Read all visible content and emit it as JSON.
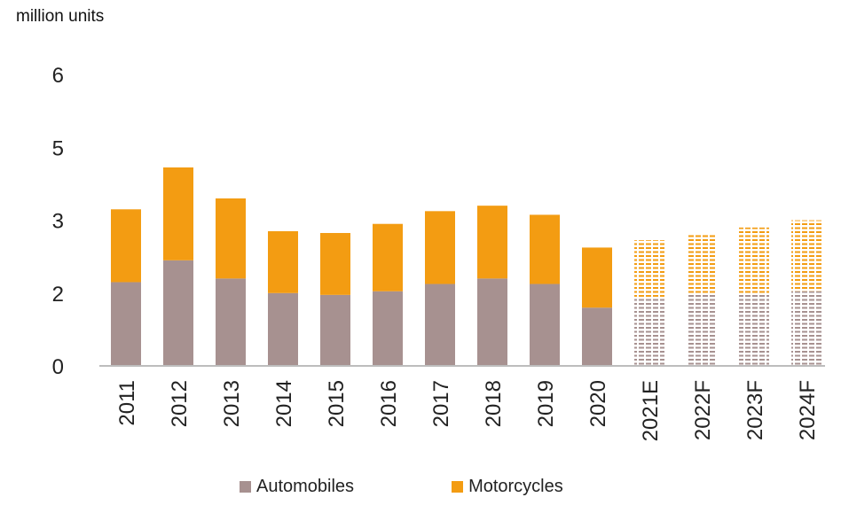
{
  "chart_data": {
    "type": "bar",
    "stacked": true,
    "ylabel": "million units",
    "yticks": [
      "0",
      "2",
      "3",
      "5",
      "6"
    ],
    "categories": [
      "2011",
      "2012",
      "2013",
      "2014",
      "2015",
      "2016",
      "2017",
      "2018",
      "2019",
      "2020",
      "2021E",
      "2022F",
      "2023F",
      "2024F"
    ],
    "series": [
      {
        "name": "Automobiles",
        "color": "#a79190",
        "values": [
          2.3,
          2.9,
          2.4,
          2.0,
          1.95,
          2.05,
          2.25,
          2.4,
          2.25,
          1.6,
          1.9,
          1.95,
          2.0,
          2.05
        ]
      },
      {
        "name": "Motorcycles",
        "color": "#f39c12",
        "values": [
          2.0,
          2.55,
          2.2,
          1.7,
          1.7,
          1.85,
          2.0,
          2.0,
          1.9,
          1.65,
          1.55,
          1.65,
          1.8,
          1.95
        ]
      }
    ],
    "projected_categories": [
      "2021E",
      "2022F",
      "2023F",
      "2024F"
    ],
    "projected_style": "dashed",
    "legend_position": "bottom",
    "grid": false
  }
}
